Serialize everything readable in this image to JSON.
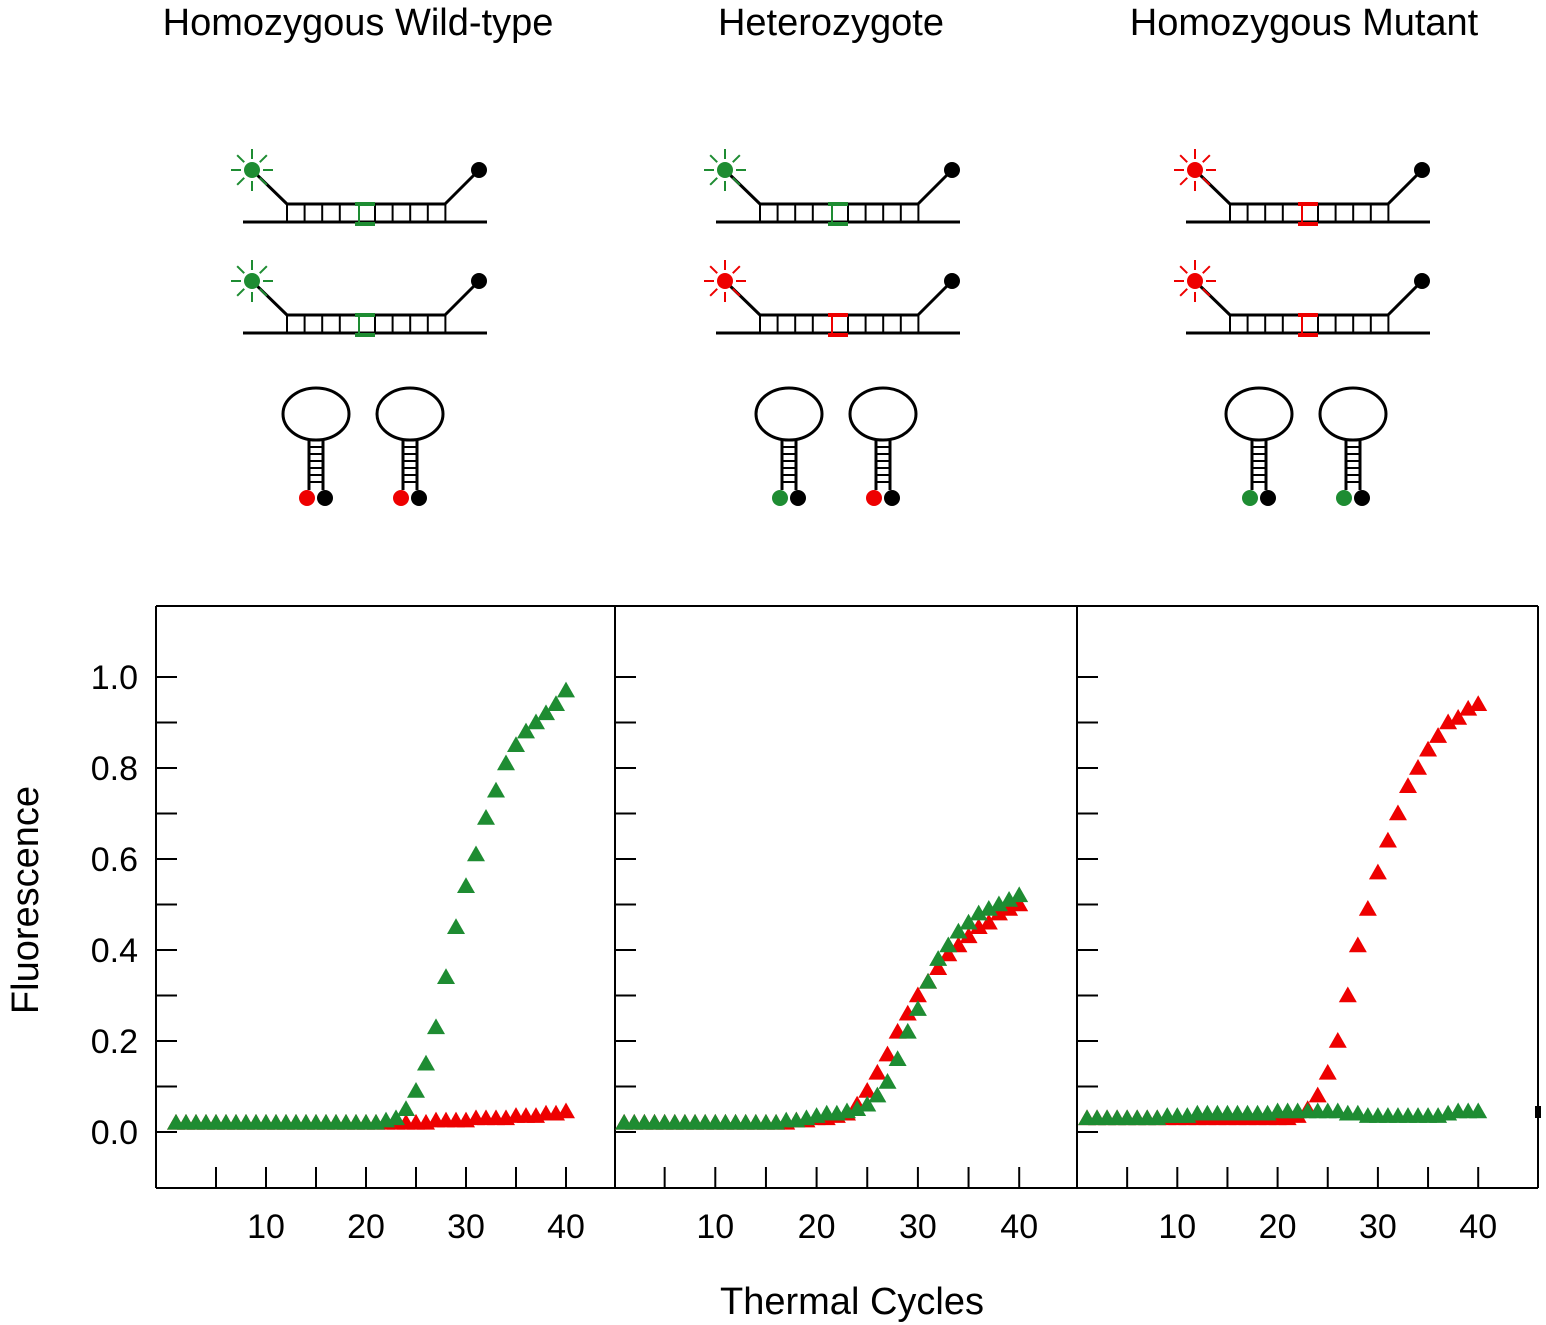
{
  "titles": [
    "Homozygous Wild-type",
    "Heterozygote",
    "Homozygous Mutant"
  ],
  "colors": {
    "green": "#1e8c32",
    "red": "#ee0000",
    "black": "#000000"
  },
  "diagram": {
    "panels": [
      {
        "probe_fluors": [
          "green",
          "green"
        ],
        "mismatch_colors": [
          "green",
          "green"
        ],
        "free_beacons": [
          "red",
          "red"
        ]
      },
      {
        "probe_fluors": [
          "green",
          "red"
        ],
        "mismatch_colors": [
          "green",
          "red"
        ],
        "free_beacons": [
          "green",
          "red"
        ]
      },
      {
        "probe_fluors": [
          "red",
          "red"
        ],
        "mismatch_colors": [
          "red",
          "red"
        ],
        "free_beacons": [
          "green",
          "green"
        ]
      }
    ]
  },
  "chart_data": {
    "type": "scatter",
    "xlabel": "Thermal Cycles",
    "ylabel": "Fluorescence",
    "yticks": [
      "0.0",
      "0.2",
      "0.4",
      "0.6",
      "0.8",
      "1.0"
    ],
    "xticks": [
      "10",
      "20",
      "30",
      "40"
    ],
    "xlim": [
      0,
      45
    ],
    "ylim": [
      -0.12,
      1.12
    ],
    "panels": [
      {
        "title": "Homozygous Wild-type",
        "series": [
          {
            "name": "red",
            "color": "#ee0000",
            "marker": "triangle",
            "values": [
              0.02,
              0.02,
              0.02,
              0.02,
              0.02,
              0.02,
              0.02,
              0.02,
              0.02,
              0.02,
              0.02,
              0.02,
              0.02,
              0.02,
              0.02,
              0.02,
              0.02,
              0.02,
              0.02,
              0.02,
              0.02,
              0.02,
              0.02,
              0.02,
              0.02,
              0.02,
              0.025,
              0.025,
              0.025,
              0.025,
              0.03,
              0.03,
              0.03,
              0.03,
              0.035,
              0.035,
              0.035,
              0.04,
              0.04,
              0.045
            ]
          },
          {
            "name": "green",
            "color": "#1e8c32",
            "marker": "triangle",
            "values": [
              0.02,
              0.02,
              0.02,
              0.02,
              0.02,
              0.02,
              0.02,
              0.02,
              0.02,
              0.02,
              0.02,
              0.02,
              0.02,
              0.02,
              0.02,
              0.02,
              0.02,
              0.02,
              0.02,
              0.02,
              0.02,
              0.025,
              0.03,
              0.05,
              0.09,
              0.15,
              0.23,
              0.34,
              0.45,
              0.54,
              0.61,
              0.69,
              0.75,
              0.81,
              0.85,
              0.88,
              0.9,
              0.92,
              0.94,
              0.97
            ]
          }
        ]
      },
      {
        "title": "Heterozygote",
        "series": [
          {
            "name": "red",
            "color": "#ee0000",
            "marker": "triangle",
            "values": [
              0.02,
              0.02,
              0.02,
              0.02,
              0.02,
              0.02,
              0.02,
              0.02,
              0.02,
              0.02,
              0.02,
              0.02,
              0.02,
              0.02,
              0.02,
              0.02,
              0.02,
              0.025,
              0.025,
              0.03,
              0.03,
              0.035,
              0.04,
              0.06,
              0.09,
              0.13,
              0.17,
              0.22,
              0.26,
              0.3,
              0.33,
              0.36,
              0.39,
              0.41,
              0.43,
              0.45,
              0.46,
              0.48,
              0.49,
              0.5
            ]
          },
          {
            "name": "green",
            "color": "#1e8c32",
            "marker": "triangle",
            "values": [
              0.02,
              0.02,
              0.02,
              0.02,
              0.02,
              0.02,
              0.02,
              0.02,
              0.02,
              0.02,
              0.02,
              0.02,
              0.02,
              0.02,
              0.02,
              0.02,
              0.025,
              0.025,
              0.03,
              0.035,
              0.04,
              0.04,
              0.045,
              0.05,
              0.06,
              0.08,
              0.11,
              0.16,
              0.22,
              0.27,
              0.33,
              0.38,
              0.41,
              0.44,
              0.46,
              0.48,
              0.49,
              0.5,
              0.51,
              0.52
            ]
          }
        ]
      },
      {
        "title": "Homozygous Mutant",
        "series": [
          {
            "name": "red",
            "color": "#ee0000",
            "marker": "triangle",
            "values": [
              0.03,
              0.03,
              0.03,
              0.03,
              0.03,
              0.03,
              0.03,
              0.03,
              0.03,
              0.03,
              0.03,
              0.03,
              0.03,
              0.03,
              0.03,
              0.03,
              0.03,
              0.03,
              0.03,
              0.03,
              0.03,
              0.035,
              0.05,
              0.08,
              0.13,
              0.2,
              0.3,
              0.41,
              0.49,
              0.57,
              0.64,
              0.7,
              0.76,
              0.8,
              0.84,
              0.87,
              0.9,
              0.91,
              0.93,
              0.94
            ]
          },
          {
            "name": "green",
            "color": "#1e8c32",
            "marker": "triangle",
            "values": [
              0.03,
              0.03,
              0.03,
              0.03,
              0.03,
              0.03,
              0.03,
              0.03,
              0.035,
              0.035,
              0.035,
              0.04,
              0.04,
              0.04,
              0.04,
              0.04,
              0.04,
              0.04,
              0.04,
              0.045,
              0.045,
              0.045,
              0.045,
              0.045,
              0.045,
              0.045,
              0.04,
              0.04,
              0.035,
              0.035,
              0.035,
              0.035,
              0.035,
              0.035,
              0.035,
              0.035,
              0.04,
              0.045,
              0.045,
              0.045
            ]
          }
        ]
      }
    ]
  }
}
